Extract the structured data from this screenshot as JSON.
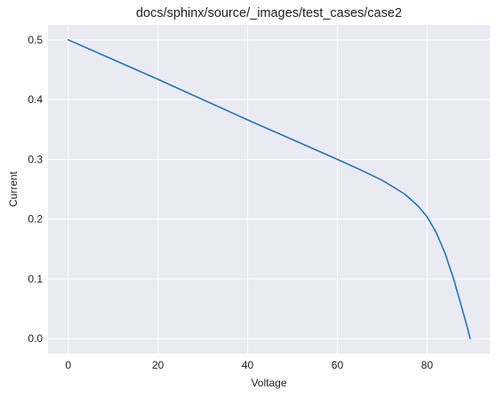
{
  "chart_data": {
    "type": "line",
    "title": "docs/sphinx/source/_images/test_cases/case2",
    "xlabel": "Voltage",
    "ylabel": "Current",
    "xlim": [
      -4.5,
      94
    ],
    "ylim": [
      -0.025,
      0.525
    ],
    "xticks": [
      0,
      20,
      40,
      60,
      80
    ],
    "yticks": [
      0.0,
      0.1,
      0.2,
      0.3,
      0.4,
      0.5
    ],
    "xtick_labels": [
      "0",
      "20",
      "40",
      "60",
      "80"
    ],
    "ytick_labels": [
      "0.0",
      "0.1",
      "0.2",
      "0.3",
      "0.4",
      "0.5"
    ],
    "grid": true,
    "background_color": "#eaeaf2",
    "grid_color": "#ffffff",
    "series": [
      {
        "color": "#1f77b4",
        "x": [
          0,
          10,
          20,
          30,
          40,
          50,
          60,
          65,
          70,
          75,
          78,
          80,
          82,
          84,
          86,
          88,
          89,
          89.6
        ],
        "y": [
          0.5,
          0.467,
          0.434,
          0.4,
          0.366,
          0.333,
          0.3,
          0.283,
          0.265,
          0.242,
          0.222,
          0.204,
          0.178,
          0.143,
          0.098,
          0.045,
          0.018,
          0.0
        ]
      }
    ]
  }
}
